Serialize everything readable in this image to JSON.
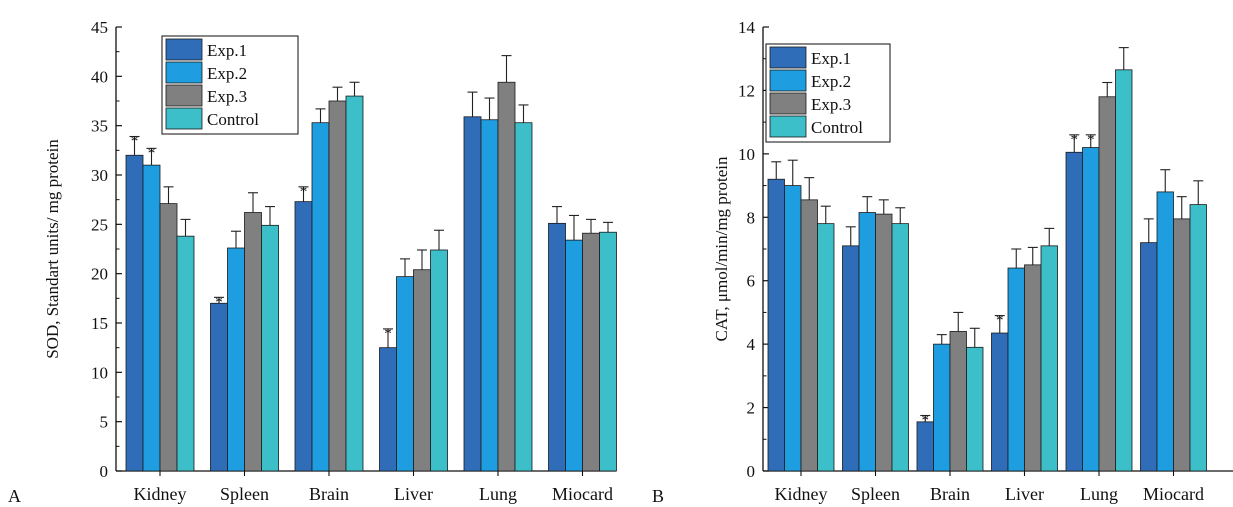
{
  "colors": [
    "#2f6db8",
    "#1e9ee0",
    "#808080",
    "#3cbfc9"
  ],
  "chart_data": [
    {
      "type": "bar",
      "panel_label": "A",
      "ylabel": "SOD, Standart units/ mg protein",
      "xlabel": "",
      "ylim": [
        0,
        45
      ],
      "yticks": [
        0,
        5,
        10,
        15,
        20,
        25,
        30,
        35,
        40,
        45
      ],
      "categories": [
        "Kidney",
        "Spleen",
        "Brain",
        "Liver",
        "Lung",
        "Miocard"
      ],
      "legend_position": "top-left",
      "series": [
        {
          "name": "Exp.1",
          "values": [
            32.0,
            17.0,
            27.3,
            12.5,
            35.9,
            25.1
          ],
          "errors": [
            1.9,
            0.6,
            1.5,
            1.9,
            2.5,
            1.7
          ],
          "significant": [
            true,
            true,
            true,
            true,
            false,
            false
          ]
        },
        {
          "name": "Exp.2",
          "values": [
            31.0,
            22.6,
            35.3,
            19.7,
            35.6,
            23.4
          ],
          "errors": [
            1.7,
            1.7,
            1.4,
            1.8,
            2.2,
            2.5
          ],
          "significant": [
            true,
            false,
            false,
            false,
            false,
            false
          ]
        },
        {
          "name": "Exp.3",
          "values": [
            27.1,
            26.2,
            37.5,
            20.4,
            39.4,
            24.1
          ],
          "errors": [
            1.7,
            2.0,
            1.4,
            2.0,
            2.7,
            1.4
          ],
          "significant": [
            false,
            false,
            false,
            false,
            false,
            false
          ]
        },
        {
          "name": "Control",
          "values": [
            23.8,
            24.9,
            38.0,
            22.4,
            35.3,
            24.2
          ],
          "errors": [
            1.7,
            1.9,
            1.4,
            2.0,
            1.8,
            1.0
          ],
          "significant": [
            false,
            false,
            false,
            false,
            false,
            false
          ]
        }
      ]
    },
    {
      "type": "bar",
      "panel_label": "B",
      "ylabel": "CAT, μmol/min/mg protein",
      "xlabel": "",
      "ylim": [
        0,
        14
      ],
      "yticks": [
        0,
        2,
        4,
        6,
        8,
        10,
        12,
        14
      ],
      "categories": [
        "Kidney",
        "Spleen",
        "Brain",
        "Liver",
        "Lung",
        "Miocard"
      ],
      "legend_position": "top-left",
      "series": [
        {
          "name": "Exp.1",
          "values": [
            9.2,
            7.1,
            1.55,
            4.35,
            10.05,
            7.2
          ],
          "errors": [
            0.55,
            0.6,
            0.2,
            0.55,
            0.55,
            0.75
          ],
          "significant": [
            false,
            false,
            true,
            true,
            true,
            false
          ]
        },
        {
          "name": "Exp.2",
          "values": [
            9.0,
            8.15,
            4.0,
            6.4,
            10.2,
            8.8
          ],
          "errors": [
            0.8,
            0.5,
            0.3,
            0.6,
            0.4,
            0.7
          ],
          "significant": [
            false,
            false,
            false,
            false,
            true,
            false
          ]
        },
        {
          "name": "Exp.3",
          "values": [
            8.55,
            8.1,
            4.4,
            6.5,
            11.8,
            7.95
          ],
          "errors": [
            0.7,
            0.45,
            0.6,
            0.55,
            0.45,
            0.7
          ],
          "significant": [
            false,
            false,
            false,
            false,
            false,
            false
          ]
        },
        {
          "name": "Control",
          "values": [
            7.8,
            7.8,
            3.9,
            7.1,
            12.65,
            8.4
          ],
          "errors": [
            0.55,
            0.5,
            0.6,
            0.55,
            0.7,
            0.75
          ],
          "significant": [
            false,
            false,
            false,
            false,
            false,
            false
          ]
        }
      ]
    }
  ]
}
